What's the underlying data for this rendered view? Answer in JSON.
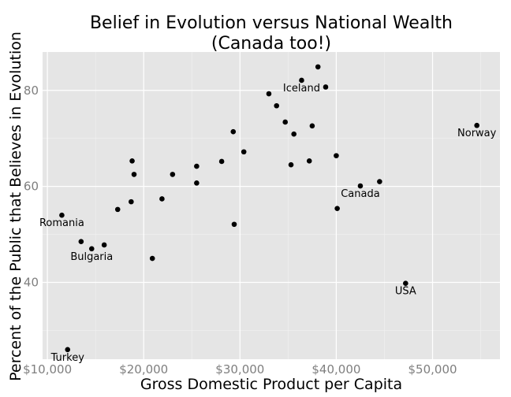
{
  "chart_data": {
    "type": "scatter",
    "title_lines": [
      "Belief in Evolution versus National Wealth",
      "(Canada too!)"
    ],
    "xlabel": "Gross Domestic Product per Capita",
    "ylabel": "Percent of the Public that Believes in Evolution",
    "xlim": [
      9500,
      57000
    ],
    "ylim": [
      24,
      88
    ],
    "x_ticks": [
      {
        "value": 10000,
        "label": "$10,000"
      },
      {
        "value": 20000,
        "label": "$20,000"
      },
      {
        "value": 30000,
        "label": "$30,000"
      },
      {
        "value": 40000,
        "label": "$40,000"
      },
      {
        "value": 50000,
        "label": "$50,000"
      }
    ],
    "y_ticks": [
      {
        "value": 40,
        "label": "40"
      },
      {
        "value": 60,
        "label": "60"
      },
      {
        "value": 80,
        "label": "80"
      }
    ],
    "grid": true,
    "colors": {
      "panel": "#e5e5e5",
      "grid_major": "#ffffff",
      "grid_minor": "#f2f2f2",
      "point": "#000000"
    },
    "points": [
      {
        "x": 11500,
        "y": 54,
        "label": "Romania"
      },
      {
        "x": 12100,
        "y": 26,
        "label": "Turkey"
      },
      {
        "x": 13500,
        "y": 48.5,
        "label": ""
      },
      {
        "x": 14600,
        "y": 47,
        "label": "Bulgaria"
      },
      {
        "x": 15900,
        "y": 47.8,
        "label": ""
      },
      {
        "x": 17300,
        "y": 55.2,
        "label": ""
      },
      {
        "x": 18700,
        "y": 56.8,
        "label": ""
      },
      {
        "x": 18800,
        "y": 65.3,
        "label": ""
      },
      {
        "x": 19000,
        "y": 62.5,
        "label": ""
      },
      {
        "x": 20900,
        "y": 45,
        "label": ""
      },
      {
        "x": 21900,
        "y": 57.4,
        "label": ""
      },
      {
        "x": 23000,
        "y": 62.5,
        "label": ""
      },
      {
        "x": 25500,
        "y": 64.2,
        "label": ""
      },
      {
        "x": 25500,
        "y": 60.7,
        "label": ""
      },
      {
        "x": 28100,
        "y": 65.2,
        "label": ""
      },
      {
        "x": 29300,
        "y": 71.4,
        "label": ""
      },
      {
        "x": 29400,
        "y": 52.1,
        "label": ""
      },
      {
        "x": 30400,
        "y": 67.2,
        "label": ""
      },
      {
        "x": 33000,
        "y": 79.3,
        "label": ""
      },
      {
        "x": 33800,
        "y": 76.8,
        "label": ""
      },
      {
        "x": 34700,
        "y": 73.4,
        "label": ""
      },
      {
        "x": 35300,
        "y": 64.5,
        "label": ""
      },
      {
        "x": 35600,
        "y": 70.9,
        "label": ""
      },
      {
        "x": 36400,
        "y": 82.1,
        "label": "Iceland"
      },
      {
        "x": 37200,
        "y": 65.3,
        "label": ""
      },
      {
        "x": 37500,
        "y": 72.6,
        "label": ""
      },
      {
        "x": 38100,
        "y": 84.9,
        "label": ""
      },
      {
        "x": 38900,
        "y": 80.7,
        "label": ""
      },
      {
        "x": 40000,
        "y": 66.4,
        "label": ""
      },
      {
        "x": 40100,
        "y": 55.4,
        "label": ""
      },
      {
        "x": 42500,
        "y": 60.1,
        "label": "Canada"
      },
      {
        "x": 44500,
        "y": 61,
        "label": ""
      },
      {
        "x": 47200,
        "y": 39.8,
        "label": "USA"
      },
      {
        "x": 54600,
        "y": 72.7,
        "label": "Norway"
      }
    ]
  }
}
